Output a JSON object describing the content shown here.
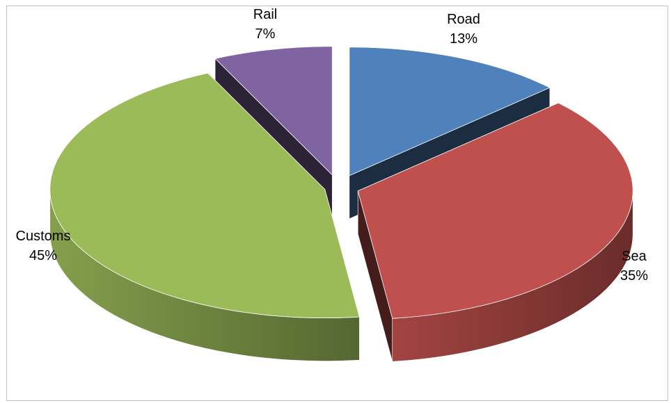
{
  "chart_data": {
    "type": "pie",
    "title": "",
    "three_d": true,
    "exploded": true,
    "legend": "none",
    "slices": [
      {
        "name": "Road",
        "value": 13,
        "label": "13%",
        "color": "#4f81bd"
      },
      {
        "name": "Sea",
        "value": 35,
        "label": "35%",
        "color": "#c0504d"
      },
      {
        "name": "Customs",
        "value": 45,
        "label": "45%",
        "color": "#9bbb59"
      },
      {
        "name": "Rail",
        "value": 7,
        "label": "7%",
        "color": "#8064a2"
      }
    ]
  }
}
